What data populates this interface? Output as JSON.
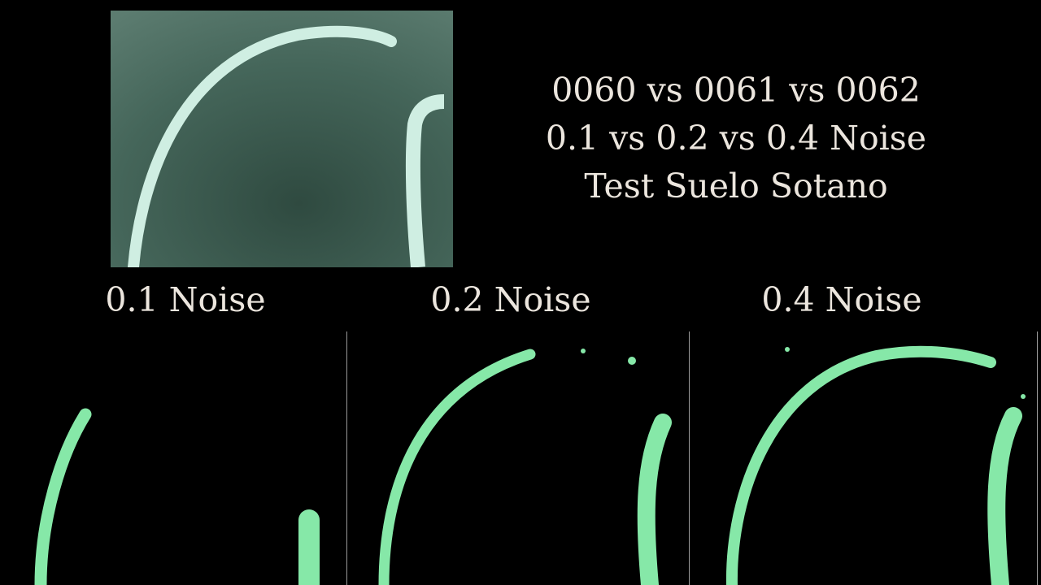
{
  "title": {
    "line1": "0060 vs 0061 vs 0062",
    "line2": "0.1 vs 0.2 vs 0.4 Noise",
    "line3": "Test Suelo Sotano"
  },
  "panels": [
    {
      "label": "0.1 Noise"
    },
    {
      "label": "0.2 Noise"
    },
    {
      "label": "0.4 Noise"
    }
  ],
  "colors": {
    "background": "#000000",
    "text": "#ece6de",
    "floor": "#3f5e52",
    "tape": "#cfeee2",
    "mask": "#86e8a8"
  }
}
